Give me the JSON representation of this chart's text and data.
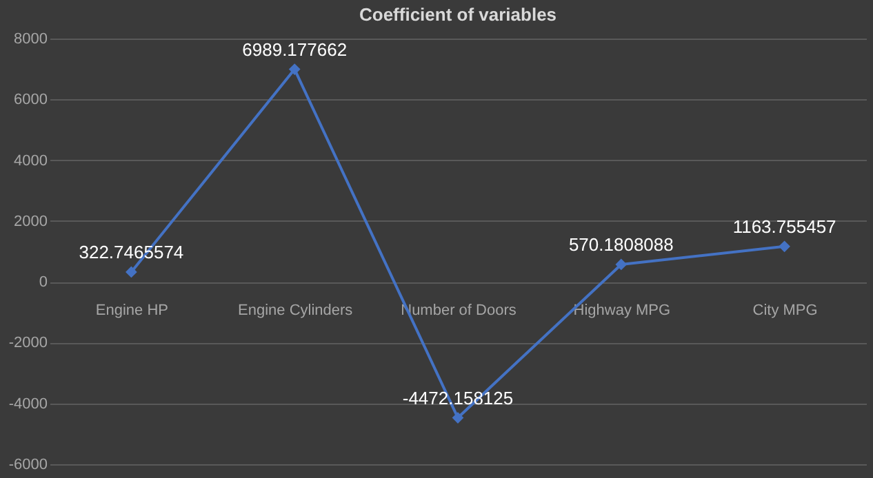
{
  "chart_data": {
    "type": "line",
    "title": "Coefficient of variables",
    "categories": [
      "Engine HP",
      "Engine Cylinders",
      "Number of Doors",
      "Highway MPG",
      "City MPG"
    ],
    "series": [
      {
        "color": "#4472c4",
        "values": [
          322.7465574,
          6989.177662,
          -4472.158125,
          570.1808088,
          1163.755457
        ]
      }
    ],
    "ylim": [
      -6000,
      8000
    ],
    "yticks": [
      -6000,
      -4000,
      -2000,
      0,
      2000,
      4000,
      6000,
      8000
    ],
    "grid": "y",
    "marker": "diamond",
    "line_style": "solid",
    "data_labels": true
  }
}
